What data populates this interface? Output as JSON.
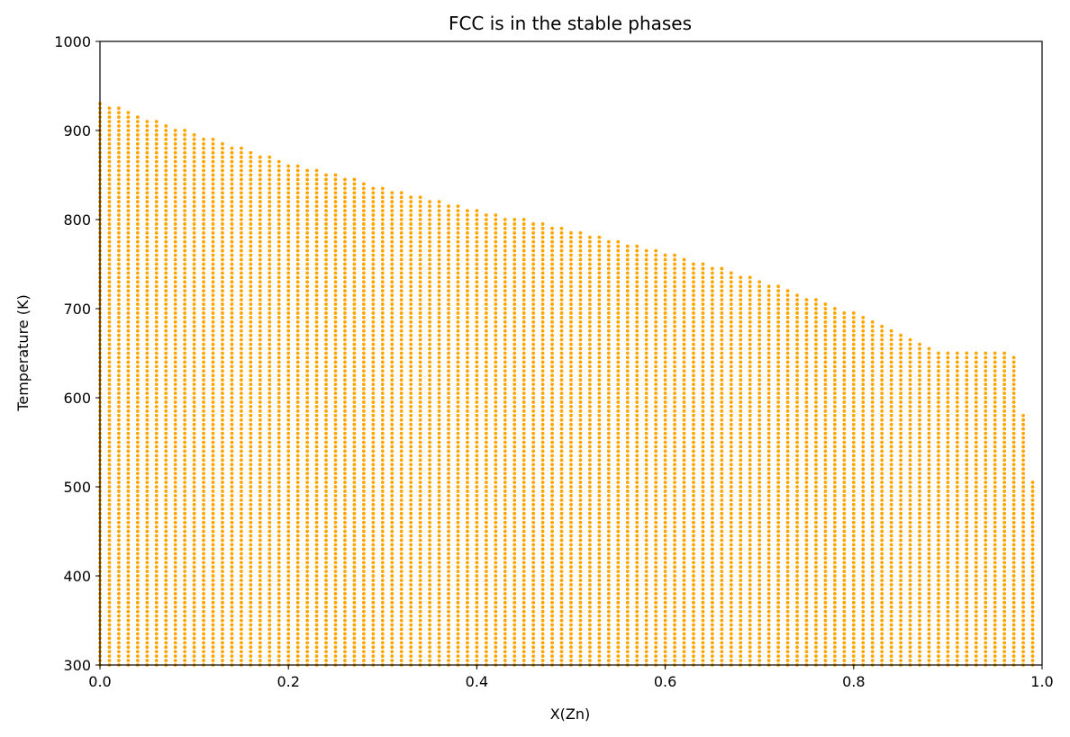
{
  "chart_data": {
    "type": "scatter",
    "title": "FCC is in the stable phases",
    "xlabel": "X(Zn)",
    "ylabel": "Temperature (K)",
    "xlim": [
      0.0,
      1.0
    ],
    "ylim": [
      300,
      1000
    ],
    "xticks": [
      "0.0",
      "0.2",
      "0.4",
      "0.6",
      "0.8",
      "1.0"
    ],
    "yticks": [
      "300",
      "400",
      "500",
      "600",
      "700",
      "800",
      "900",
      "1000"
    ],
    "grid": false,
    "legend": "none",
    "marker_color": "#ffa500",
    "series": [
      {
        "description": "stable FCC points: for each x (step 0.01), temperatures from 300 K (step 5 K) up to the upper boundary temperature",
        "x_step": 0.01,
        "t_min": 300,
        "t_step": 5,
        "x": [
          0.0,
          0.01,
          0.02,
          0.03,
          0.04,
          0.05,
          0.06,
          0.07,
          0.08,
          0.09,
          0.1,
          0.11,
          0.12,
          0.13,
          0.14,
          0.15,
          0.16,
          0.17,
          0.18,
          0.19,
          0.2,
          0.21,
          0.22,
          0.23,
          0.24,
          0.25,
          0.26,
          0.27,
          0.28,
          0.29,
          0.3,
          0.31,
          0.32,
          0.33,
          0.34,
          0.35,
          0.36,
          0.37,
          0.38,
          0.39,
          0.4,
          0.41,
          0.42,
          0.43,
          0.44,
          0.45,
          0.46,
          0.47,
          0.48,
          0.49,
          0.5,
          0.51,
          0.52,
          0.53,
          0.54,
          0.55,
          0.56,
          0.57,
          0.58,
          0.59,
          0.6,
          0.61,
          0.62,
          0.63,
          0.64,
          0.65,
          0.66,
          0.67,
          0.68,
          0.69,
          0.7,
          0.71,
          0.72,
          0.73,
          0.74,
          0.75,
          0.76,
          0.77,
          0.78,
          0.79,
          0.8,
          0.81,
          0.82,
          0.83,
          0.84,
          0.85,
          0.86,
          0.87,
          0.88,
          0.89,
          0.9,
          0.91,
          0.92,
          0.93,
          0.94,
          0.95,
          0.96,
          0.97,
          0.98,
          0.99
        ],
        "t_max": [
          930,
          925,
          925,
          920,
          915,
          910,
          910,
          905,
          900,
          900,
          895,
          890,
          890,
          885,
          880,
          880,
          875,
          870,
          870,
          865,
          860,
          860,
          855,
          855,
          850,
          850,
          845,
          845,
          840,
          835,
          835,
          830,
          830,
          825,
          825,
          820,
          820,
          815,
          815,
          810,
          810,
          805,
          805,
          800,
          800,
          800,
          795,
          795,
          790,
          790,
          785,
          785,
          780,
          780,
          775,
          775,
          770,
          770,
          765,
          765,
          760,
          760,
          755,
          750,
          750,
          745,
          745,
          740,
          735,
          735,
          730,
          725,
          725,
          720,
          715,
          710,
          710,
          705,
          700,
          695,
          695,
          690,
          685,
          680,
          675,
          670,
          665,
          660,
          655,
          650,
          650,
          650,
          650,
          650,
          650,
          650,
          650,
          645,
          580,
          505
        ]
      }
    ]
  }
}
